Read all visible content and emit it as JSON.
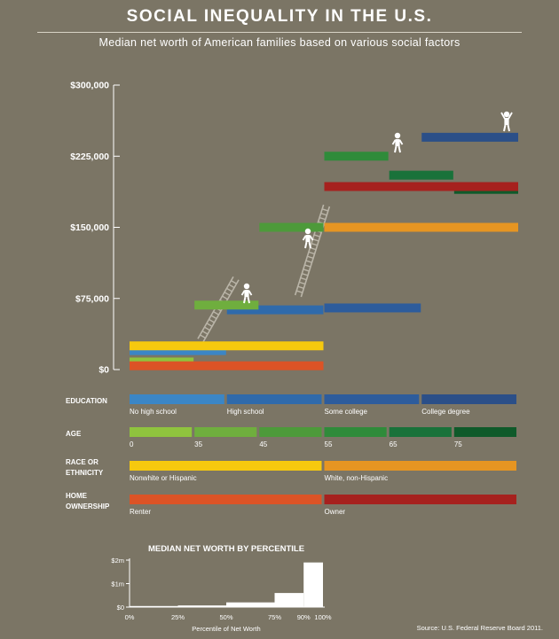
{
  "title": "SOCIAL INEQUALITY IN THE U.S.",
  "subtitle": "Median net worth of American families based on various social factors",
  "source": "Source: U.S. Federal Reserve Board 2011.",
  "colors": {
    "background": "#7b7565",
    "edu_1": "#3b86c6",
    "edu_2": "#2f6aab",
    "edu_3": "#2d5c9c",
    "edu_4": "#2b4f88",
    "age_1": "#8fc33e",
    "age_2": "#6fae3e",
    "age_3": "#4d9a3a",
    "age_4": "#2f8b3a",
    "age_5": "#19723a",
    "age_6": "#0f5a2a",
    "race_1": "#f6c90e",
    "race_2": "#e69522",
    "home_1": "#dc5326",
    "home_2": "#a6211e",
    "ladder": "#bab5a8"
  },
  "chart_data": [
    {
      "type": "bar",
      "title": "",
      "ylabel": "",
      "ylim": [
        0,
        300000
      ],
      "yticks": [
        0,
        75000,
        150000,
        225000,
        300000
      ],
      "ytick_labels": [
        "$0",
        "$75,000",
        "$150,000",
        "$225,000",
        "$300,000"
      ],
      "note": "",
      "groups": [
        {
          "name": "EDUCATION",
          "legend_label": "EDUCATION",
          "categories": [
            {
              "label": "No high school",
              "value": 20000,
              "color": "#3b86c6"
            },
            {
              "label": "High school",
              "value": 63000,
              "color": "#2f6aab"
            },
            {
              "label": "Some college",
              "value": 65000,
              "color": "#2d5c9c"
            },
            {
              "label": "College degree",
              "value": 245000,
              "color": "#2b4f88"
            }
          ]
        },
        {
          "name": "AGE",
          "legend_label": "AGE",
          "tick_labels": [
            "0",
            "35",
            "45",
            "55",
            "65",
            "75"
          ],
          "categories": [
            {
              "label": "0",
              "value": 8000,
              "color": "#8fc33e"
            },
            {
              "label": "35",
              "value": 68000,
              "color": "#6fae3e"
            },
            {
              "label": "45",
              "value": 150000,
              "color": "#4d9a3a"
            },
            {
              "label": "55",
              "value": 225000,
              "color": "#2f8b3a"
            },
            {
              "label": "65",
              "value": 205000,
              "color": "#19723a"
            },
            {
              "label": "75",
              "value": 190000,
              "color": "#0f5a2a"
            }
          ]
        },
        {
          "name": "RACE OR ETHNICITY",
          "legend_label": "RACE OR\nETHNICITY",
          "categories": [
            {
              "label": "Nonwhite or Hispanic",
              "value": 25000,
              "color": "#f6c90e"
            },
            {
              "label": "White, non-Hispanic",
              "value": 150000,
              "color": "#e69522"
            }
          ]
        },
        {
          "name": "HOME OWNERSHIP",
          "legend_label": "HOME\nOWNERSHIP",
          "categories": [
            {
              "label": "Renter",
              "value": 4000,
              "color": "#dc5326"
            },
            {
              "label": "Owner",
              "value": 193000,
              "color": "#a6211e"
            }
          ]
        }
      ]
    },
    {
      "type": "histogram",
      "title": "MEDIAN NET WORTH BY PERCENTILE",
      "xlabel": "Percentile of Net Worth",
      "x_tick_labels": [
        "0%",
        "25%",
        "50%",
        "75%",
        "90%",
        "100%"
      ],
      "y_tick_labels": [
        "$0",
        "$1m",
        "$2m"
      ],
      "ylim": [
        0,
        2000000
      ],
      "bins": [
        {
          "from": 0,
          "to": 25,
          "value": 2000
        },
        {
          "from": 25,
          "to": 50,
          "value": 70000
        },
        {
          "from": 50,
          "to": 75,
          "value": 200000
        },
        {
          "from": 75,
          "to": 90,
          "value": 600000
        },
        {
          "from": 90,
          "to": 100,
          "value": 1900000
        }
      ]
    }
  ]
}
